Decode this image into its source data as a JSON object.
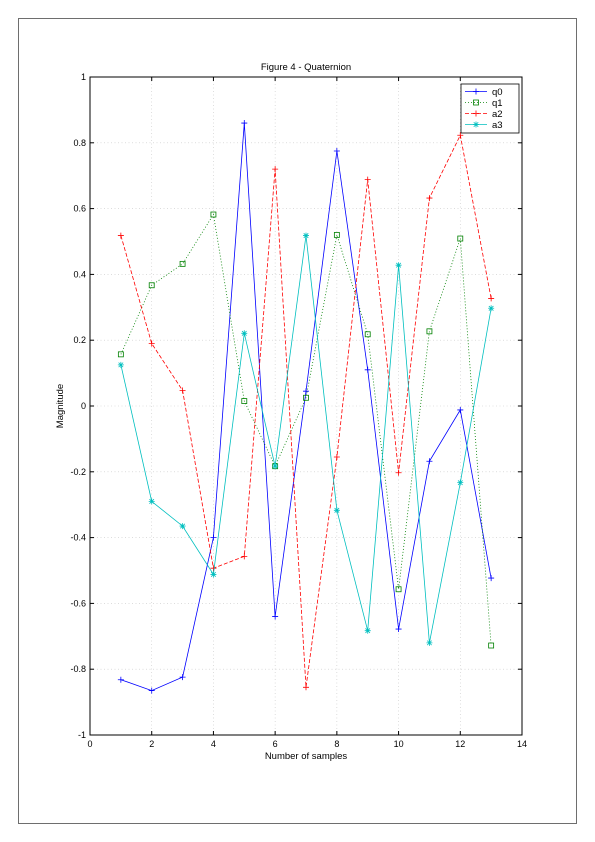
{
  "chart_data": {
    "type": "line",
    "title": "Figure 4 - Quaternion",
    "xlabel": "Number of samples",
    "ylabel": "Magnitude",
    "xlim": [
      0,
      14
    ],
    "ylim": [
      -1,
      1
    ],
    "xticks": [
      0,
      2,
      4,
      6,
      8,
      10,
      12,
      14
    ],
    "yticks": [
      -1,
      -0.8,
      -0.6,
      -0.4,
      -0.2,
      0,
      0.2,
      0.4,
      0.6,
      0.8,
      1
    ],
    "grid": true,
    "legend_position": "top-right",
    "x": [
      1,
      2,
      3,
      4,
      5,
      6,
      7,
      8,
      9,
      10,
      11,
      12,
      13
    ],
    "series": [
      {
        "name": "q0",
        "color": "#0000ff",
        "dash": "solid",
        "marker": "plus",
        "values": [
          -0.832,
          -0.865,
          -0.824,
          -0.4,
          0.86,
          -0.64,
          0.045,
          0.775,
          0.11,
          -0.678,
          -0.168,
          -0.012,
          -0.523
        ]
      },
      {
        "name": "q1",
        "color": "#008000",
        "dash": "dotted",
        "marker": "square",
        "values": [
          0.157,
          0.367,
          0.432,
          0.582,
          0.015,
          -0.183,
          0.025,
          0.52,
          0.218,
          -0.557,
          0.227,
          0.509,
          -0.728
        ]
      },
      {
        "name": "a2",
        "color": "#ff0000",
        "dash": "dashed",
        "marker": "plus",
        "values": [
          0.518,
          0.19,
          0.047,
          -0.493,
          -0.457,
          0.72,
          -0.855,
          -0.155,
          0.688,
          -0.203,
          0.632,
          0.823,
          0.327
        ]
      },
      {
        "name": "a3",
        "color": "#00bfbf",
        "dash": "solid",
        "marker": "star",
        "values": [
          0.125,
          -0.29,
          -0.365,
          -0.512,
          0.221,
          -0.183,
          0.518,
          -0.317,
          -0.683,
          0.428,
          -0.72,
          -0.233,
          0.297
        ]
      }
    ]
  }
}
